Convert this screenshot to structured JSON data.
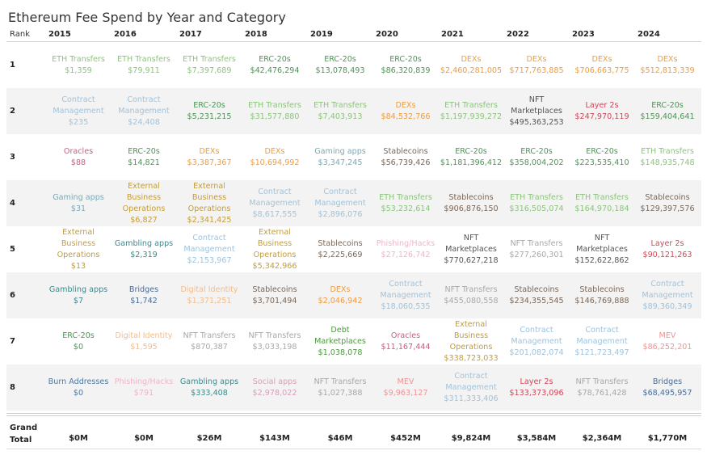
{
  "chart_data": {
    "type": "table",
    "title": "Ethereum Fee Spend by Year and Category",
    "row_header": "Rank",
    "years": [
      "2015",
      "2016",
      "2017",
      "2018",
      "2019",
      "2020",
      "2021",
      "2022",
      "2023",
      "2024"
    ],
    "category_colors": {
      "ETH Transfers": "#8cc47c",
      "ERC-20s": "#4f9458",
      "DEXs": "#ee9d3f",
      "Contract Management": "#9fc3dc",
      "Oracles": "#c75f7c",
      "Gaming apps": "#79a9b6",
      "External Business Operations": "#c29d3c",
      "Gambling apps": "#3b8a8c",
      "Bridges": "#4a6d96",
      "Digital Identity": "#f3bd8a",
      "NFT Transfers": "#a8a8a8",
      "Burn Addresses": "#4b78a0",
      "Phishing/Hacks": "#f1b6c8",
      "Social apps": "#d69fb8",
      "Stablecoins": "#7a6758",
      "Debt Marketplaces": "#4c9a3e",
      "NFT Marketplaces": "#555555",
      "Layer 2s": "#cf4757",
      "MEV": "#ef9494"
    },
    "rows": [
      {
        "rank": "1",
        "cells": [
          [
            "ETH Transfers",
            "$1,359"
          ],
          [
            "ETH Transfers",
            "$79,911"
          ],
          [
            "ETH Transfers",
            "$7,397,689"
          ],
          [
            "ERC-20s",
            "$42,476,294"
          ],
          [
            "ERC-20s",
            "$13,078,493"
          ],
          [
            "ERC-20s",
            "$86,320,839"
          ],
          [
            "DEXs",
            "$2,460,281,005"
          ],
          [
            "DEXs",
            "$717,763,885"
          ],
          [
            "DEXs",
            "$706,663,775"
          ],
          [
            "DEXs",
            "$512,813,339"
          ]
        ]
      },
      {
        "rank": "2",
        "cells": [
          [
            "Contract Management",
            "$235"
          ],
          [
            "Contract Management",
            "$24,408"
          ],
          [
            "ERC-20s",
            "$5,231,215"
          ],
          [
            "ETH Transfers",
            "$31,577,880"
          ],
          [
            "ETH Transfers",
            "$7,403,913"
          ],
          [
            "DEXs",
            "$84,532,766"
          ],
          [
            "ETH Transfers",
            "$1,197,939,272"
          ],
          [
            "NFT Marketplaces",
            "$495,363,253"
          ],
          [
            "Layer 2s",
            "$247,970,119"
          ],
          [
            "ERC-20s",
            "$159,404,641"
          ]
        ]
      },
      {
        "rank": "3",
        "cells": [
          [
            "Oracles",
            "$88"
          ],
          [
            "ERC-20s",
            "$14,821"
          ],
          [
            "DEXs",
            "$3,387,367"
          ],
          [
            "DEXs",
            "$10,694,992"
          ],
          [
            "Gaming apps",
            "$3,347,245"
          ],
          [
            "Stablecoins",
            "$56,739,426"
          ],
          [
            "ERC-20s",
            "$1,181,396,412"
          ],
          [
            "ERC-20s",
            "$358,004,202"
          ],
          [
            "ERC-20s",
            "$223,535,410"
          ],
          [
            "ETH Transfers",
            "$148,935,748"
          ]
        ]
      },
      {
        "rank": "4",
        "cells": [
          [
            "Gaming apps",
            "$31"
          ],
          [
            "External Business Operations",
            "$6,827"
          ],
          [
            "External Business Operations",
            "$2,341,425"
          ],
          [
            "Contract Management",
            "$8,617,555"
          ],
          [
            "Contract Management",
            "$2,896,076"
          ],
          [
            "ETH Transfers",
            "$53,232,614"
          ],
          [
            "Stablecoins",
            "$906,876,150"
          ],
          [
            "ETH Transfers",
            "$316,505,074"
          ],
          [
            "ETH Transfers",
            "$164,970,184"
          ],
          [
            "Stablecoins",
            "$129,397,576"
          ]
        ]
      },
      {
        "rank": "5",
        "cells": [
          [
            "External Business Operations",
            "$13"
          ],
          [
            "Gambling apps",
            "$2,319"
          ],
          [
            "Contract Management",
            "$2,153,967"
          ],
          [
            "External Business Operations",
            "$5,342,966"
          ],
          [
            "Stablecoins",
            "$2,225,669"
          ],
          [
            "Phishing/Hacks",
            "$27,126,742"
          ],
          [
            "NFT Marketplaces",
            "$770,627,218"
          ],
          [
            "NFT Transfers",
            "$277,260,301"
          ],
          [
            "NFT Marketplaces",
            "$152,622,862"
          ],
          [
            "Layer 2s",
            "$90,121,263"
          ]
        ]
      },
      {
        "rank": "6",
        "cells": [
          [
            "Gambling apps",
            "$7"
          ],
          [
            "Bridges",
            "$1,742"
          ],
          [
            "Digital Identity",
            "$1,371,251"
          ],
          [
            "Stablecoins",
            "$3,701,494"
          ],
          [
            "DEXs",
            "$2,046,942"
          ],
          [
            "Contract Management",
            "$18,060,535"
          ],
          [
            "NFT Transfers",
            "$455,080,558"
          ],
          [
            "Stablecoins",
            "$234,355,545"
          ],
          [
            "Stablecoins",
            "$146,769,888"
          ],
          [
            "Contract Management",
            "$89,360,349"
          ]
        ]
      },
      {
        "rank": "7",
        "cells": [
          [
            "ERC-20s",
            "$0"
          ],
          [
            "Digital Identity",
            "$1,595"
          ],
          [
            "NFT Transfers",
            "$870,387"
          ],
          [
            "NFT Transfers",
            "$3,033,198"
          ],
          [
            "Debt Marketplaces",
            "$1,038,078"
          ],
          [
            "Oracles",
            "$11,167,444"
          ],
          [
            "External Business Operations",
            "$338,723,033"
          ],
          [
            "Contract Management",
            "$201,082,074"
          ],
          [
            "Contract Management",
            "$121,723,497"
          ],
          [
            "MEV",
            "$86,252,201"
          ]
        ]
      },
      {
        "rank": "8",
        "cells": [
          [
            "Burn Addresses",
            "$0"
          ],
          [
            "Phishing/Hacks",
            "$791"
          ],
          [
            "Gambling apps",
            "$333,408"
          ],
          [
            "Social apps",
            "$2,978,022"
          ],
          [
            "NFT Transfers",
            "$1,027,388"
          ],
          [
            "MEV",
            "$9,963,127"
          ],
          [
            "Contract Management",
            "$311,333,406"
          ],
          [
            "Layer 2s",
            "$133,373,096"
          ],
          [
            "NFT Transfers",
            "$78,761,428"
          ],
          [
            "Bridges",
            "$68,495,957"
          ]
        ]
      }
    ],
    "grand_total_label": "Grand Total",
    "grand_totals": [
      "$0M",
      "$0M",
      "$26M",
      "$143M",
      "$46M",
      "$452M",
      "$9,824M",
      "$3,584M",
      "$2,364M",
      "$1,770M"
    ]
  }
}
